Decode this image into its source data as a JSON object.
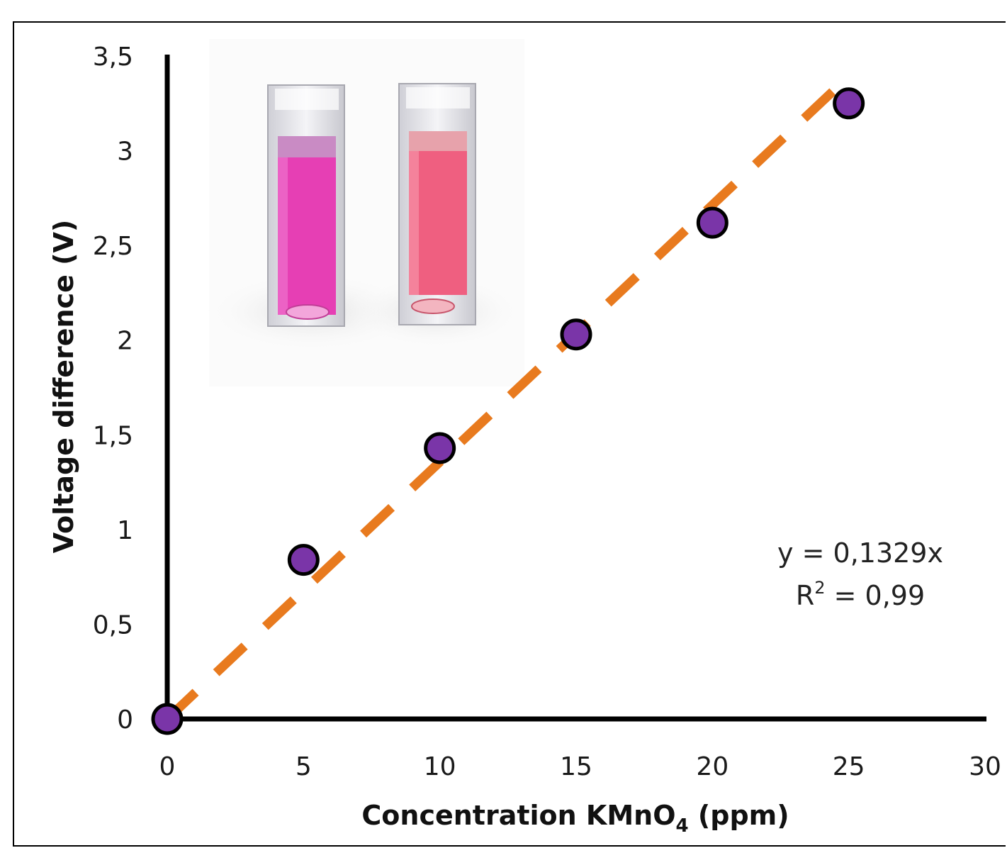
{
  "chart_data": {
    "type": "scatter",
    "xlabel": "Concentration KMnO",
    "xlabel_subscript": "4",
    "xlabel_suffix": " (ppm)",
    "ylabel": "Voltage difference (V)",
    "xlim": [
      0,
      30
    ],
    "ylim": [
      0,
      3.5
    ],
    "x_ticks": [
      "0",
      "5",
      "10",
      "15",
      "20",
      "25",
      "30"
    ],
    "y_ticks": [
      "0",
      "0,5",
      "1",
      "1,5",
      "2",
      "2,5",
      "3",
      "3,5"
    ],
    "series": [
      {
        "x": [
          0,
          5,
          10,
          15,
          20,
          25
        ],
        "y": [
          0,
          0.84,
          1.43,
          2.03,
          2.62,
          3.25
        ],
        "color": "#7a35a8",
        "edge_color": "#000000"
      }
    ],
    "trendline": {
      "slope": 0.1329,
      "color": "#e87a1e",
      "style": "dashed",
      "x_range": [
        0,
        25
      ]
    },
    "annotations": {
      "equation": "y = 0,1329x",
      "r2_prefix": "R",
      "r2_sup": "2",
      "r2_value": " = 0,99"
    },
    "grid": false,
    "inset_image": "photo of two cuvettes with magenta and pink KMnO4 solutions"
  }
}
